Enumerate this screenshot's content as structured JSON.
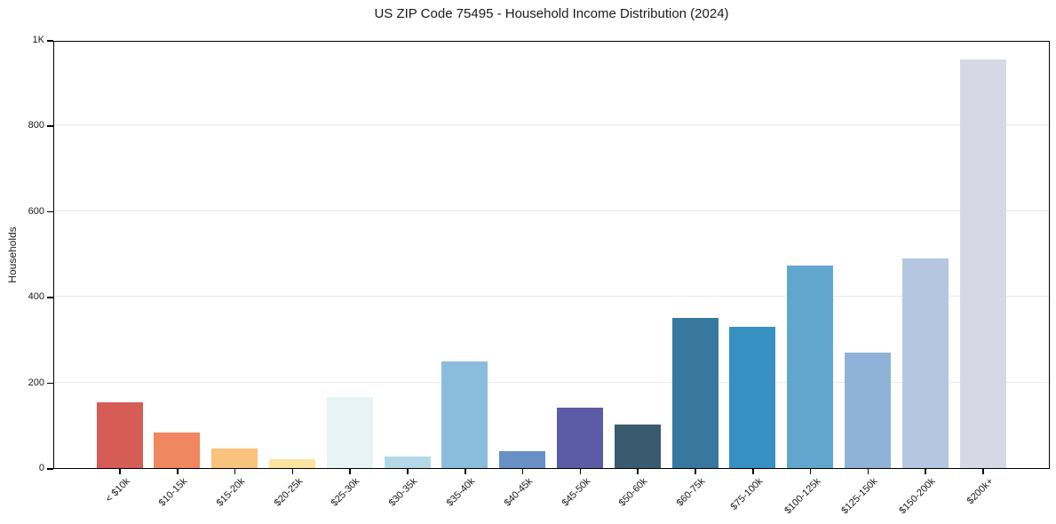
{
  "chart_data": {
    "type": "bar",
    "title": "US ZIP Code 75495 - Household Income Distribution (2024)",
    "xlabel": "",
    "ylabel": "Households",
    "categories": [
      "< $10k",
      "$10-15k",
      "$15-20k",
      "$20-25k",
      "$25-30k",
      "$30-35k",
      "$35-40k",
      "$40-45k",
      "$45-50k",
      "$50-60k",
      "$60-75k",
      "$75-100k",
      "$100-125k",
      "$125-150k",
      "$150-200k",
      "$200k+"
    ],
    "values": [
      153,
      82,
      46,
      21,
      167,
      26,
      249,
      40,
      141,
      101,
      350,
      330,
      474,
      270,
      490,
      955
    ],
    "bar_colors": [
      "#d65c56",
      "#f0875f",
      "#f9c27d",
      "#fbe3a0",
      "#e7f3f5",
      "#b5d8e9",
      "#8cbcdd",
      "#6890c4",
      "#5c5ba6",
      "#3a5a6f",
      "#38789f",
      "#388fc2",
      "#61a7cd",
      "#8fb3d8",
      "#b5c6e0",
      "#d7d8e5"
    ],
    "ylim": [
      0,
      1000
    ],
    "yticks": [
      {
        "value": 0,
        "label": "0"
      },
      {
        "value": 200,
        "label": "200"
      },
      {
        "value": 400,
        "label": "400"
      },
      {
        "value": 600,
        "label": "600"
      },
      {
        "value": 800,
        "label": "800"
      },
      {
        "value": 1000,
        "label": "1K"
      }
    ],
    "grid": true,
    "gridline_color": "#e9e9e9",
    "axis_color": "#000000",
    "background_color": "#ffffff",
    "x_tick_rotation": 45,
    "legend": "none"
  }
}
